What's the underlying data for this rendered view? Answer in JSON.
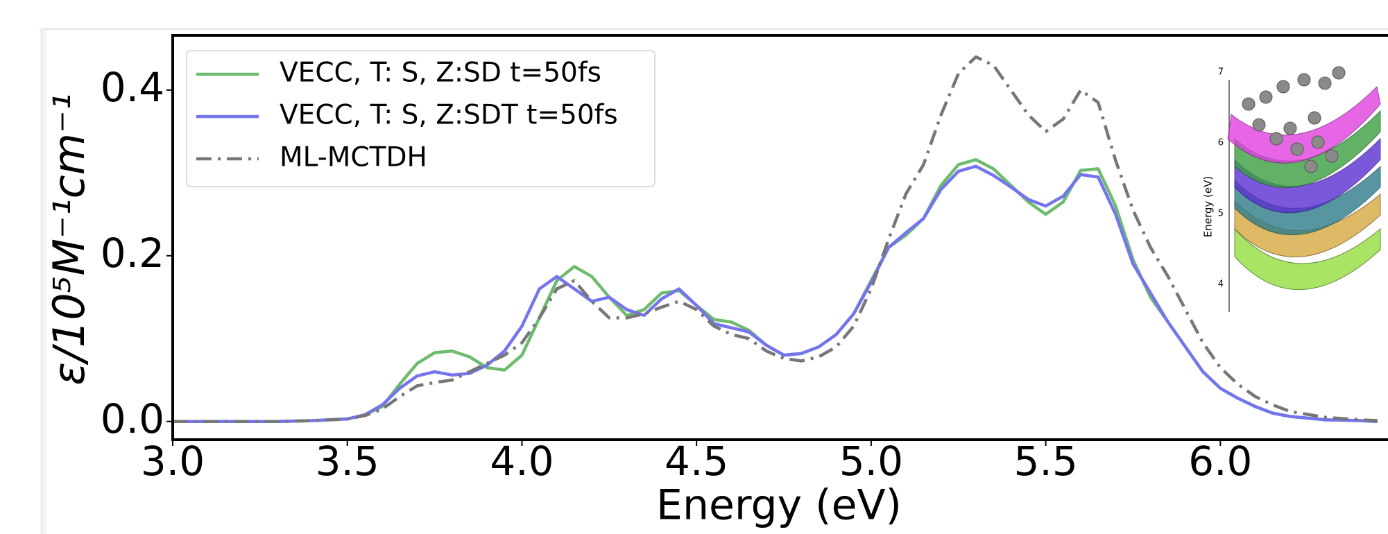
{
  "chart_data": {
    "type": "line",
    "xlabel": "Energy (eV)",
    "ylabel": "ε/10⁵M⁻¹cm⁻¹",
    "x": [
      3.0,
      3.1,
      3.2,
      3.3,
      3.4,
      3.5,
      3.55,
      3.6,
      3.65,
      3.7,
      3.75,
      3.8,
      3.85,
      3.9,
      3.95,
      4.0,
      4.05,
      4.1,
      4.15,
      4.2,
      4.25,
      4.3,
      4.35,
      4.4,
      4.45,
      4.5,
      4.55,
      4.6,
      4.65,
      4.7,
      4.75,
      4.8,
      4.85,
      4.9,
      4.95,
      5.0,
      5.05,
      5.1,
      5.15,
      5.2,
      5.25,
      5.3,
      5.35,
      5.4,
      5.45,
      5.5,
      5.55,
      5.6,
      5.65,
      5.7,
      5.75,
      5.8,
      5.85,
      5.9,
      5.95,
      6.0,
      6.05,
      6.1,
      6.15,
      6.2,
      6.3,
      6.4,
      6.45
    ],
    "series": [
      {
        "name": "VECC, T: S, Z:SD t=50fs",
        "color": "#6dbb6d",
        "dash": "solid",
        "values": [
          0,
          0,
          0,
          0,
          0.001,
          0.003,
          0.008,
          0.018,
          0.045,
          0.07,
          0.083,
          0.085,
          0.078,
          0.065,
          0.062,
          0.08,
          0.125,
          0.17,
          0.187,
          0.175,
          0.15,
          0.128,
          0.135,
          0.155,
          0.158,
          0.14,
          0.123,
          0.12,
          0.11,
          0.092,
          0.08,
          0.082,
          0.09,
          0.105,
          0.13,
          0.17,
          0.21,
          0.225,
          0.245,
          0.285,
          0.31,
          0.316,
          0.305,
          0.285,
          0.265,
          0.25,
          0.265,
          0.303,
          0.305,
          0.26,
          0.195,
          0.15,
          0.12,
          0.09,
          0.06,
          0.04,
          0.028,
          0.018,
          0.01,
          0.006,
          0.002,
          0.001,
          0
        ]
      },
      {
        "name": "VECC, T: S, Z:SDT t=50fs",
        "color": "#7474ee",
        "dash": "solid",
        "values": [
          0,
          0,
          0,
          0,
          0.001,
          0.003,
          0.008,
          0.02,
          0.04,
          0.055,
          0.06,
          0.056,
          0.058,
          0.068,
          0.085,
          0.115,
          0.16,
          0.175,
          0.16,
          0.145,
          0.15,
          0.135,
          0.128,
          0.148,
          0.16,
          0.14,
          0.118,
          0.113,
          0.108,
          0.092,
          0.08,
          0.082,
          0.09,
          0.105,
          0.13,
          0.168,
          0.21,
          0.228,
          0.245,
          0.28,
          0.302,
          0.308,
          0.297,
          0.283,
          0.268,
          0.26,
          0.272,
          0.298,
          0.295,
          0.25,
          0.19,
          0.155,
          0.12,
          0.09,
          0.06,
          0.04,
          0.028,
          0.018,
          0.01,
          0.006,
          0.002,
          0.001,
          0
        ]
      },
      {
        "name": "ML-MCTDH",
        "color": "#777777",
        "dash": "dashdot",
        "values": [
          0,
          0,
          0,
          0,
          0.001,
          0.003,
          0.007,
          0.015,
          0.03,
          0.043,
          0.047,
          0.05,
          0.06,
          0.07,
          0.08,
          0.095,
          0.125,
          0.16,
          0.17,
          0.145,
          0.125,
          0.125,
          0.13,
          0.138,
          0.145,
          0.135,
          0.115,
          0.105,
          0.1,
          0.085,
          0.076,
          0.073,
          0.078,
          0.09,
          0.115,
          0.16,
          0.22,
          0.275,
          0.31,
          0.37,
          0.42,
          0.44,
          0.43,
          0.4,
          0.37,
          0.35,
          0.365,
          0.4,
          0.385,
          0.315,
          0.255,
          0.21,
          0.175,
          0.135,
          0.095,
          0.065,
          0.045,
          0.03,
          0.02,
          0.012,
          0.005,
          0.002,
          0.001
        ]
      }
    ],
    "xlim": [
      3.0,
      6.48
    ],
    "ylim": [
      -0.022,
      0.466
    ],
    "xticks": [
      {
        "value": 3.0,
        "label": "3.0"
      },
      3.5,
      {
        "value": 4.0,
        "label": "4.0"
      },
      4.5,
      {
        "value": 5.0,
        "label": "5.0"
      },
      5.5,
      {
        "value": 6.0,
        "label": "6.0"
      }
    ],
    "yticks": [
      {
        "value": 0,
        "label": "0.0"
      },
      0.2,
      0.4
    ],
    "grid": false,
    "legend": "upper left"
  },
  "inset": {
    "ylabel": "Energy (eV)",
    "yticks": [
      "4",
      "5",
      "6",
      "7"
    ]
  }
}
